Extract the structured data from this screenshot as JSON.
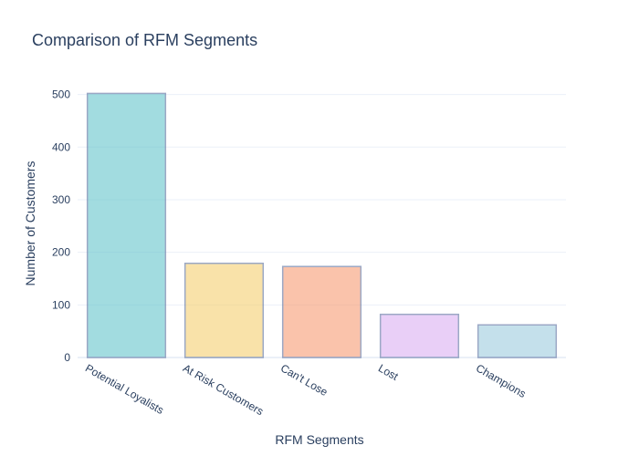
{
  "chart_data": {
    "type": "bar",
    "title": "Comparison of RFM Segments",
    "xlabel": "RFM Segments",
    "ylabel": "Number of Customers",
    "categories": [
      "Potential Loyalists",
      "At Risk Customers",
      "Can't Lose",
      "Lost",
      "Champions"
    ],
    "values": [
      502,
      179,
      173,
      82,
      62
    ],
    "colors": [
      "#66c5cc",
      "#f6cf71",
      "#f89c74",
      "#dcb0f2",
      "#9eccdf"
    ],
    "bar_outline_color": "#5a70a0",
    "ylim": [
      0,
      527
    ],
    "yticks": [
      0,
      100,
      200,
      300,
      400,
      500
    ],
    "grid": true
  }
}
